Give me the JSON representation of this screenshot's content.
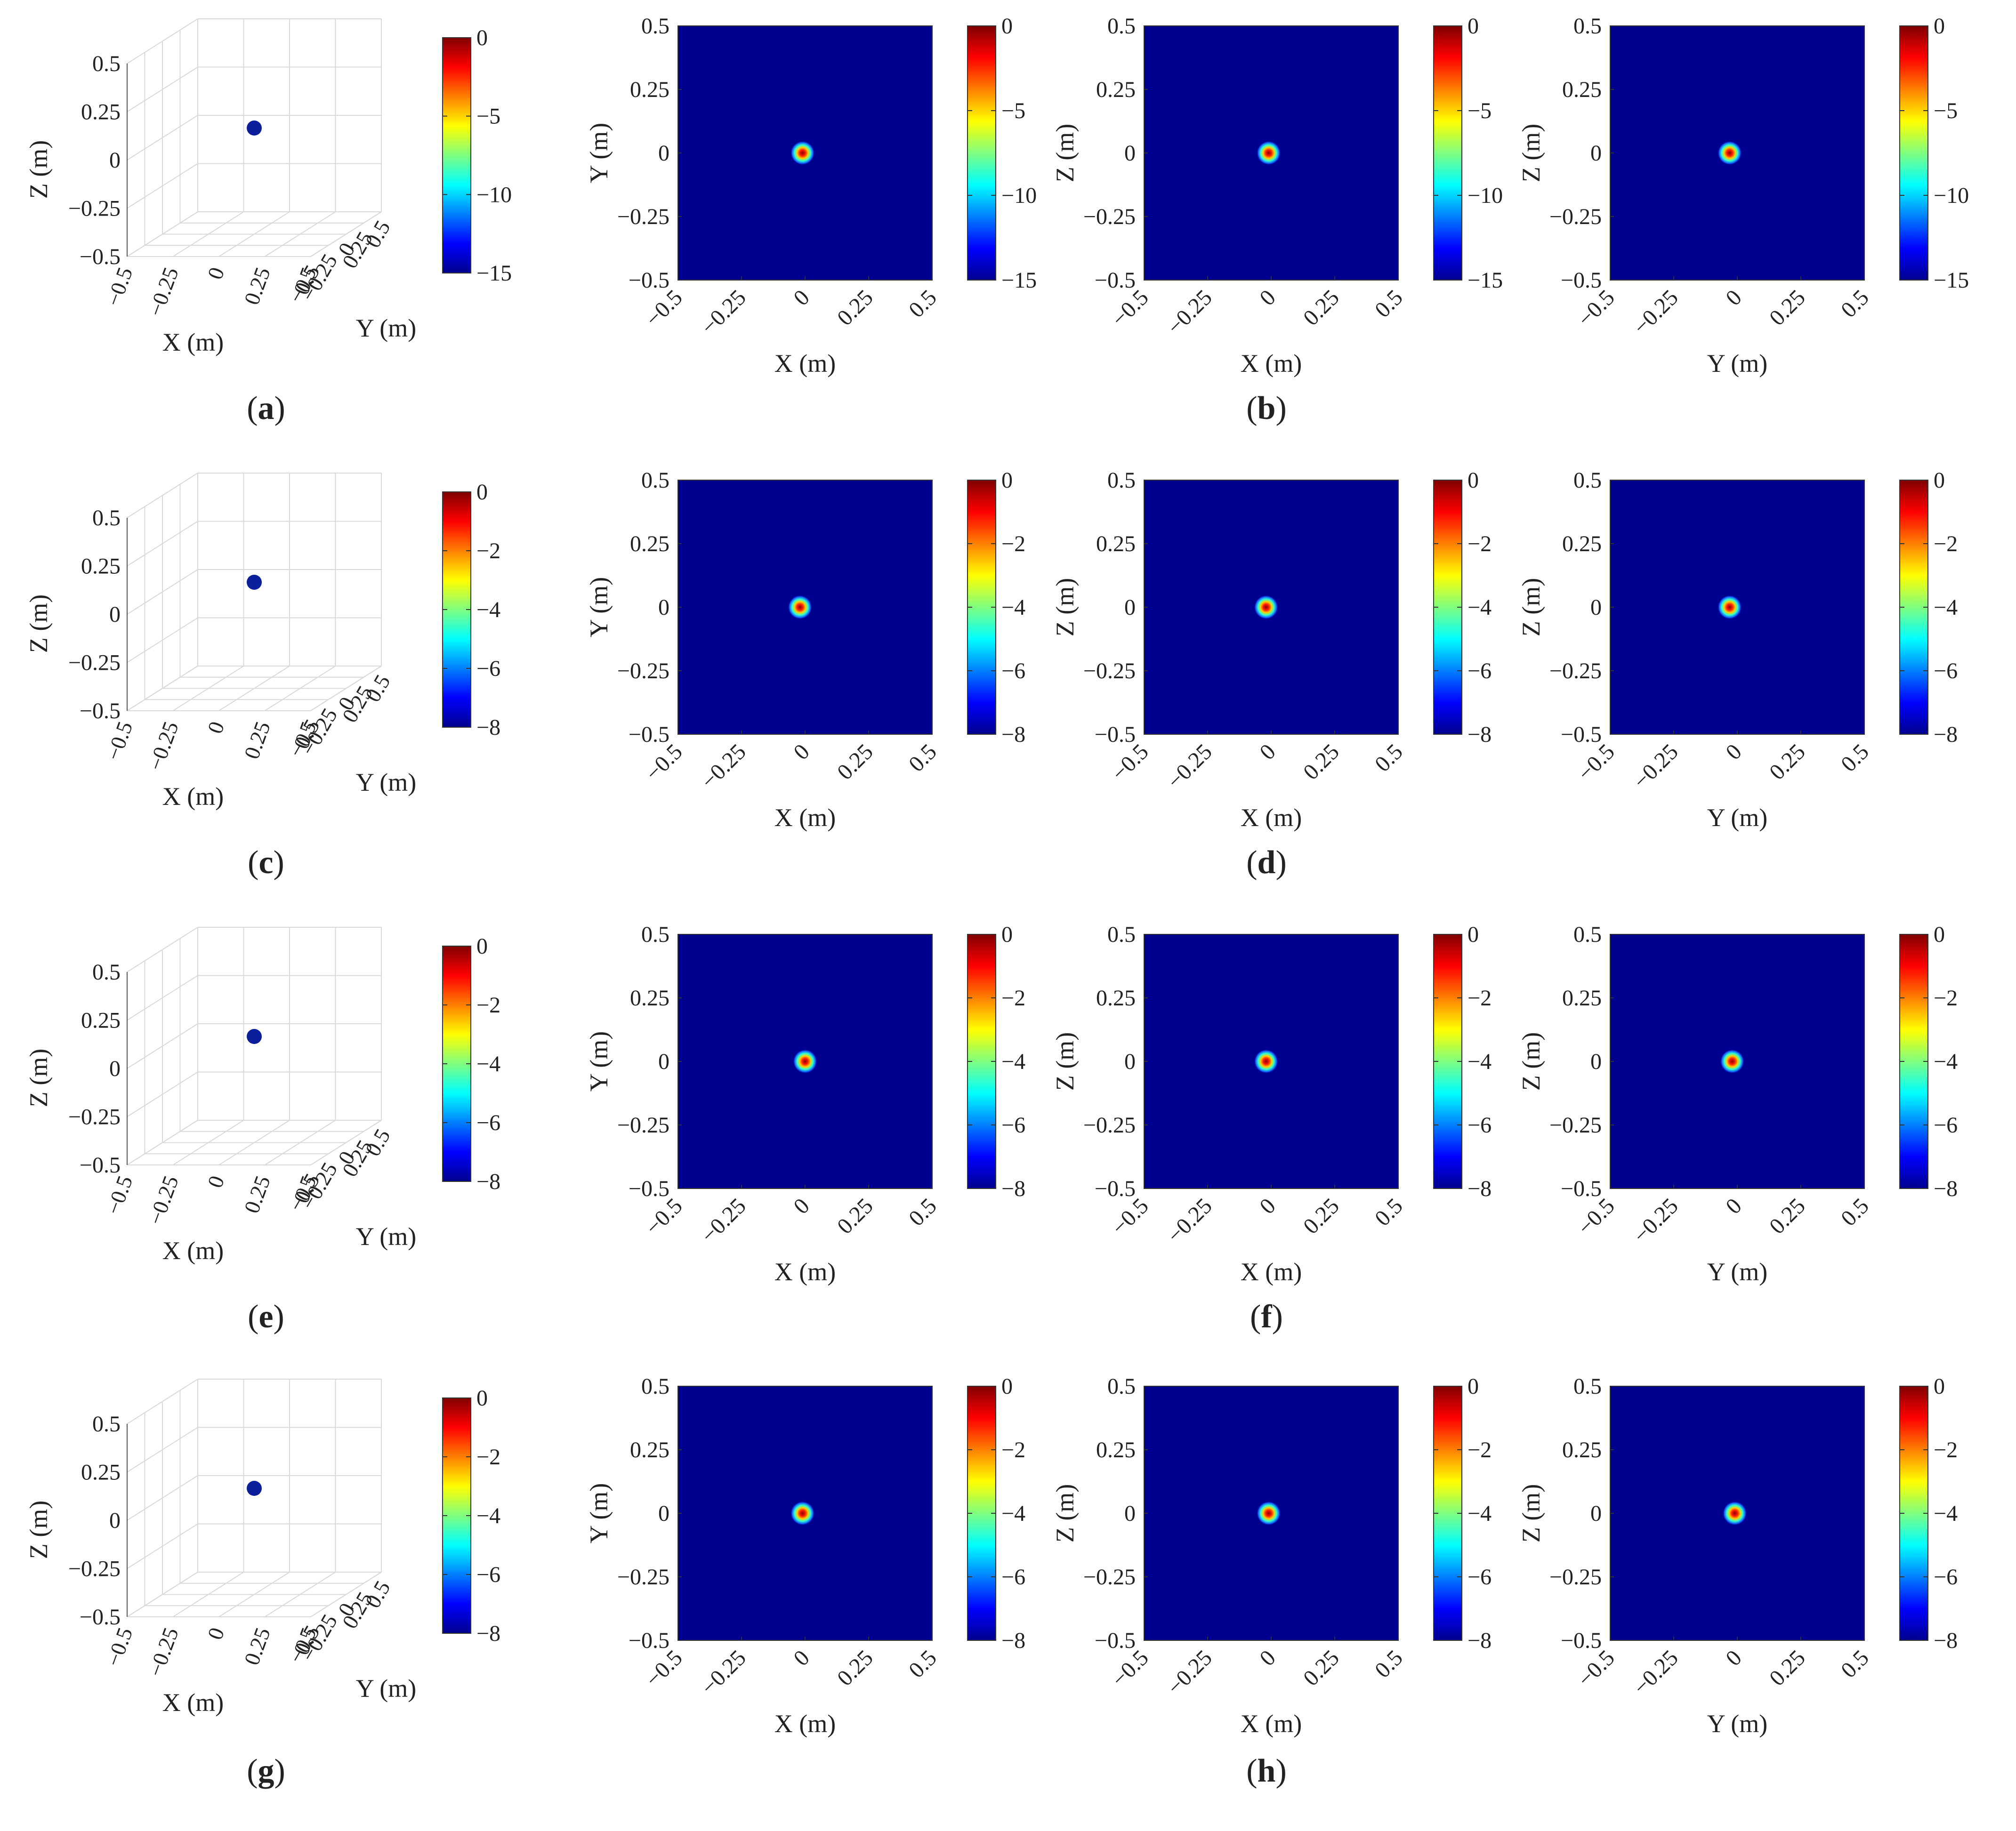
{
  "figure": {
    "panel_labels": [
      {
        "letter": "a",
        "row": 0,
        "col": "left"
      },
      {
        "letter": "b",
        "row": 0,
        "col": "right"
      },
      {
        "letter": "c",
        "row": 1,
        "col": "left"
      },
      {
        "letter": "d",
        "row": 1,
        "col": "right"
      },
      {
        "letter": "e",
        "row": 2,
        "col": "left"
      },
      {
        "letter": "f",
        "row": 2,
        "col": "right"
      },
      {
        "letter": "g",
        "row": 3,
        "col": "left"
      },
      {
        "letter": "h",
        "row": 3,
        "col": "right"
      }
    ],
    "colormap": "jet",
    "colors": {
      "background_field": "#00008f",
      "scatter": "#0b1f9c",
      "grid": "#d9d9d9",
      "axis": "#555555"
    }
  },
  "chart_data": [
    {
      "id": "row1-3d",
      "type": "scatter",
      "plot": "3d",
      "xlabel": "X (m)",
      "ylabel": "Y (m)",
      "zlabel": "Z (m)",
      "xlim": [
        -0.5,
        0.5
      ],
      "ylim": [
        -0.5,
        0.5
      ],
      "zlim": [
        -0.5,
        0.5
      ],
      "ticks": [
        "-0.5",
        "-0.25",
        "0",
        "0.25",
        "0.5"
      ],
      "grid": true,
      "points": [
        {
          "x": 0,
          "y": 0,
          "z": 0.05
        }
      ],
      "colorbar": {
        "min": -15,
        "max": 0,
        "ticks": [
          "0",
          "-5",
          "-10",
          "-15"
        ]
      }
    },
    {
      "id": "row1-xy",
      "type": "heatmap",
      "xlabel": "X (m)",
      "ylabel": "Y (m)",
      "xlim": [
        -0.5,
        0.5
      ],
      "ylim": [
        -0.5,
        0.5
      ],
      "ticks": [
        "-0.5",
        "-0.25",
        "0",
        "0.25",
        "0.5"
      ],
      "peaks": [
        {
          "x": -0.01,
          "y": 0,
          "value": 0
        }
      ],
      "colorbar": {
        "min": -15,
        "max": 0,
        "ticks": [
          "0",
          "-5",
          "-10",
          "-15"
        ]
      }
    },
    {
      "id": "row1-xz",
      "type": "heatmap",
      "xlabel": "X (m)",
      "ylabel": "Z (m)",
      "xlim": [
        -0.5,
        0.5
      ],
      "ylim": [
        -0.5,
        0.5
      ],
      "ticks": [
        "-0.5",
        "-0.25",
        "0",
        "0.25",
        "0.5"
      ],
      "peaks": [
        {
          "x": -0.01,
          "y": 0,
          "value": 0
        }
      ],
      "colorbar": {
        "min": -15,
        "max": 0,
        "ticks": [
          "0",
          "-5",
          "-10",
          "-15"
        ]
      }
    },
    {
      "id": "row1-yz",
      "type": "heatmap",
      "xlabel": "Y (m)",
      "ylabel": "Z (m)",
      "xlim": [
        -0.5,
        0.5
      ],
      "ylim": [
        -0.5,
        0.5
      ],
      "ticks": [
        "-0.5",
        "-0.25",
        "0",
        "0.25",
        "0.5"
      ],
      "peaks": [
        {
          "x": -0.03,
          "y": 0,
          "value": 0
        }
      ],
      "colorbar": {
        "min": -15,
        "max": 0,
        "ticks": [
          "0",
          "-5",
          "-10",
          "-15"
        ]
      }
    },
    {
      "id": "row2-3d",
      "type": "scatter",
      "plot": "3d",
      "xlabel": "X (m)",
      "ylabel": "Y (m)",
      "zlabel": "Z (m)",
      "xlim": [
        -0.5,
        0.5
      ],
      "ylim": [
        -0.5,
        0.5
      ],
      "zlim": [
        -0.5,
        0.5
      ],
      "ticks": [
        "-0.5",
        "-0.25",
        "0",
        "0.25",
        "0.5"
      ],
      "grid": true,
      "points": [
        {
          "x": 0,
          "y": 0,
          "z": 0.05
        }
      ],
      "colorbar": {
        "min": -8,
        "max": 0,
        "ticks": [
          "0",
          "-2",
          "-4",
          "-6",
          "-8"
        ]
      }
    },
    {
      "id": "row2-xy",
      "type": "heatmap",
      "xlabel": "X (m)",
      "ylabel": "Y (m)",
      "xlim": [
        -0.5,
        0.5
      ],
      "ylim": [
        -0.5,
        0.5
      ],
      "ticks": [
        "-0.5",
        "-0.25",
        "0",
        "0.25",
        "0.5"
      ],
      "peaks": [
        {
          "x": -0.02,
          "y": 0,
          "value": 0
        }
      ],
      "colorbar": {
        "min": -8,
        "max": 0,
        "ticks": [
          "0",
          "-2",
          "-4",
          "-6",
          "-8"
        ]
      }
    },
    {
      "id": "row2-xz",
      "type": "heatmap",
      "xlabel": "X (m)",
      "ylabel": "Z (m)",
      "xlim": [
        -0.5,
        0.5
      ],
      "ylim": [
        -0.5,
        0.5
      ],
      "ticks": [
        "-0.5",
        "-0.25",
        "0",
        "0.25",
        "0.5"
      ],
      "peaks": [
        {
          "x": -0.02,
          "y": 0,
          "value": 0
        }
      ],
      "colorbar": {
        "min": -8,
        "max": 0,
        "ticks": [
          "0",
          "-2",
          "-4",
          "-6",
          "-8"
        ]
      }
    },
    {
      "id": "row2-yz",
      "type": "heatmap",
      "xlabel": "Y (m)",
      "ylabel": "Z (m)",
      "xlim": [
        -0.5,
        0.5
      ],
      "ylim": [
        -0.5,
        0.5
      ],
      "ticks": [
        "-0.5",
        "-0.25",
        "0",
        "0.25",
        "0.5"
      ],
      "peaks": [
        {
          "x": -0.03,
          "y": 0,
          "value": 0
        }
      ],
      "colorbar": {
        "min": -8,
        "max": 0,
        "ticks": [
          "0",
          "-2",
          "-4",
          "-6",
          "-8"
        ]
      }
    },
    {
      "id": "row3-3d",
      "type": "scatter",
      "plot": "3d",
      "xlabel": "X (m)",
      "ylabel": "Y (m)",
      "zlabel": "Z (m)",
      "xlim": [
        -0.5,
        0.5
      ],
      "ylim": [
        -0.5,
        0.5
      ],
      "zlim": [
        -0.5,
        0.5
      ],
      "ticks": [
        "-0.5",
        "-0.25",
        "0",
        "0.25",
        "0.5"
      ],
      "grid": true,
      "points": [
        {
          "x": 0,
          "y": 0,
          "z": 0.05
        }
      ],
      "colorbar": {
        "min": -8,
        "max": 0,
        "ticks": [
          "0",
          "-2",
          "-4",
          "-6",
          "-8"
        ]
      }
    },
    {
      "id": "row3-xy",
      "type": "heatmap",
      "xlabel": "X (m)",
      "ylabel": "Y (m)",
      "xlim": [
        -0.5,
        0.5
      ],
      "ylim": [
        -0.5,
        0.5
      ],
      "ticks": [
        "-0.5",
        "-0.25",
        "0",
        "0.25",
        "0.5"
      ],
      "peaks": [
        {
          "x": 0,
          "y": 0,
          "value": 0
        }
      ],
      "colorbar": {
        "min": -8,
        "max": 0,
        "ticks": [
          "0",
          "-2",
          "-4",
          "-6",
          "-8"
        ]
      }
    },
    {
      "id": "row3-xz",
      "type": "heatmap",
      "xlabel": "X (m)",
      "ylabel": "Z (m)",
      "xlim": [
        -0.5,
        0.5
      ],
      "ylim": [
        -0.5,
        0.5
      ],
      "ticks": [
        "-0.5",
        "-0.25",
        "0",
        "0.25",
        "0.5"
      ],
      "peaks": [
        {
          "x": -0.02,
          "y": 0,
          "value": 0
        }
      ],
      "colorbar": {
        "min": -8,
        "max": 0,
        "ticks": [
          "0",
          "-2",
          "-4",
          "-6",
          "-8"
        ]
      }
    },
    {
      "id": "row3-yz",
      "type": "heatmap",
      "xlabel": "Y (m)",
      "ylabel": "Z (m)",
      "xlim": [
        -0.5,
        0.5
      ],
      "ylim": [
        -0.5,
        0.5
      ],
      "ticks": [
        "-0.5",
        "-0.25",
        "0",
        "0.25",
        "0.5"
      ],
      "peaks": [
        {
          "x": -0.02,
          "y": 0,
          "value": 0
        }
      ],
      "colorbar": {
        "min": -8,
        "max": 0,
        "ticks": [
          "0",
          "-2",
          "-4",
          "-6",
          "-8"
        ]
      }
    },
    {
      "id": "row4-3d",
      "type": "scatter",
      "plot": "3d",
      "xlabel": "X (m)",
      "ylabel": "Y (m)",
      "zlabel": "Z (m)",
      "xlim": [
        -0.5,
        0.5
      ],
      "ylim": [
        -0.5,
        0.5
      ],
      "zlim": [
        -0.5,
        0.5
      ],
      "ticks": [
        "-0.5",
        "-0.25",
        "0",
        "0.25",
        "0.5"
      ],
      "grid": true,
      "points": [
        {
          "x": 0,
          "y": 0,
          "z": 0.05
        }
      ],
      "colorbar": {
        "min": -8,
        "max": 0,
        "ticks": [
          "0",
          "-2",
          "-4",
          "-6",
          "-8"
        ]
      }
    },
    {
      "id": "row4-xy",
      "type": "heatmap",
      "xlabel": "X (m)",
      "ylabel": "Y (m)",
      "xlim": [
        -0.5,
        0.5
      ],
      "ylim": [
        -0.5,
        0.5
      ],
      "ticks": [
        "-0.5",
        "-0.25",
        "0",
        "0.25",
        "0.5"
      ],
      "peaks": [
        {
          "x": -0.01,
          "y": 0,
          "value": 0
        }
      ],
      "colorbar": {
        "min": -8,
        "max": 0,
        "ticks": [
          "0",
          "-2",
          "-4",
          "-6",
          "-8"
        ]
      }
    },
    {
      "id": "row4-xz",
      "type": "heatmap",
      "xlabel": "X (m)",
      "ylabel": "Z (m)",
      "xlim": [
        -0.5,
        0.5
      ],
      "ylim": [
        -0.5,
        0.5
      ],
      "ticks": [
        "-0.5",
        "-0.25",
        "0",
        "0.25",
        "0.5"
      ],
      "peaks": [
        {
          "x": -0.01,
          "y": 0,
          "value": 0
        }
      ],
      "colorbar": {
        "min": -8,
        "max": 0,
        "ticks": [
          "0",
          "-2",
          "-4",
          "-6",
          "-8"
        ]
      }
    },
    {
      "id": "row4-yz",
      "type": "heatmap",
      "xlabel": "Y (m)",
      "ylabel": "Z (m)",
      "xlim": [
        -0.5,
        0.5
      ],
      "ylim": [
        -0.5,
        0.5
      ],
      "ticks": [
        "-0.5",
        "-0.25",
        "0",
        "0.25",
        "0.5"
      ],
      "peaks": [
        {
          "x": -0.01,
          "y": 0,
          "value": 0
        }
      ],
      "colorbar": {
        "min": -8,
        "max": 0,
        "ticks": [
          "0",
          "-2",
          "-4",
          "-6",
          "-8"
        ]
      }
    }
  ]
}
